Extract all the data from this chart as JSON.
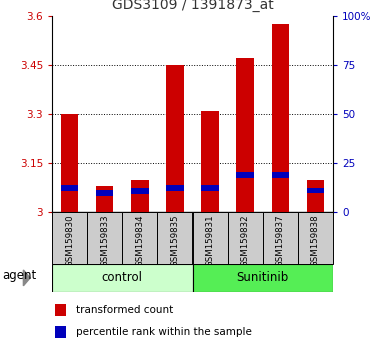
{
  "title": "GDS3109 / 1391873_at",
  "samples": [
    "GSM159830",
    "GSM159833",
    "GSM159834",
    "GSM159835",
    "GSM159831",
    "GSM159832",
    "GSM159837",
    "GSM159838"
  ],
  "red_values": [
    3.3,
    3.08,
    3.1,
    3.45,
    3.31,
    3.47,
    3.575,
    3.1
  ],
  "blue_values": [
    3.065,
    3.05,
    3.055,
    3.065,
    3.065,
    3.105,
    3.105,
    3.058
  ],
  "blue_heights": [
    0.018,
    0.018,
    0.018,
    0.018,
    0.018,
    0.018,
    0.018,
    0.018
  ],
  "ymin": 3.0,
  "ymax": 3.6,
  "yticks": [
    3.0,
    3.15,
    3.3,
    3.45,
    3.6
  ],
  "ytick_labels": [
    "3",
    "3.15",
    "3.3",
    "3.45",
    "3.6"
  ],
  "right_yticks": [
    0,
    25,
    50,
    75,
    100
  ],
  "right_ytick_labels": [
    "0",
    "25",
    "50",
    "75",
    "100%"
  ],
  "bar_color": "#cc0000",
  "blue_color": "#0000bb",
  "left_tick_color": "#cc0000",
  "right_tick_color": "#0000bb",
  "title_color": "#333333",
  "control_color": "#ccffcc",
  "sunitinib_color": "#55ee55",
  "xlabel_bg": "#cccccc",
  "group_label_control": "control",
  "group_label_sunitinib": "Sunitinib",
  "agent_label": "agent",
  "legend_red_label": "transformed count",
  "legend_blue_label": "percentile rank within the sample",
  "bar_width": 0.5,
  "grid_color": "#000000",
  "grid_linewidth": 0.7
}
